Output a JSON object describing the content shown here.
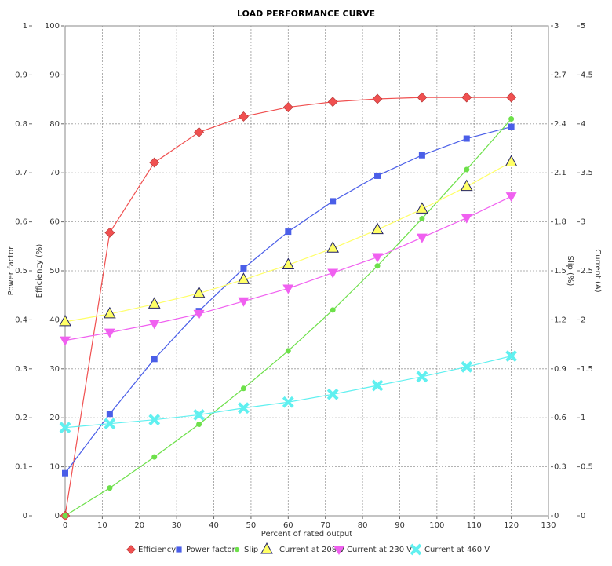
{
  "chart_data": {
    "type": "line",
    "title": "LOAD PERFORMANCE CURVE",
    "x_label": "Percent of rated output",
    "x": [
      0,
      12,
      24,
      36,
      48,
      60,
      72,
      84,
      96,
      108,
      120
    ],
    "xlim": [
      0,
      130
    ],
    "xticks": [
      0,
      10,
      20,
      30,
      40,
      50,
      60,
      70,
      80,
      90,
      100,
      110,
      120,
      130
    ],
    "grid": true,
    "y_axes": [
      {
        "label": "Power factor",
        "side": "left",
        "lim": [
          0,
          1
        ],
        "ticks": [
          0,
          0.1,
          0.2,
          0.3,
          0.4,
          0.5,
          0.6,
          0.7,
          0.8,
          0.9,
          1
        ]
      },
      {
        "label": "Efficiency (%)",
        "side": "left",
        "lim": [
          0,
          100
        ],
        "ticks": [
          0,
          10,
          20,
          30,
          40,
          50,
          60,
          70,
          80,
          90,
          100
        ]
      },
      {
        "label": "Slip (%)",
        "side": "right",
        "lim": [
          0,
          3
        ],
        "ticks": [
          0,
          0.3,
          0.6,
          0.9,
          1.2,
          1.5,
          1.8,
          2.1,
          2.4,
          2.7,
          3
        ]
      },
      {
        "label": "Current (A)",
        "side": "right",
        "lim": [
          0,
          5
        ],
        "ticks": [
          0,
          0.5,
          1,
          1.5,
          2,
          2.5,
          3,
          3.5,
          4,
          4.5,
          5
        ]
      }
    ],
    "series": [
      {
        "name": "Efficiency",
        "color": "#f05050",
        "marker": "diamond",
        "axis": 1,
        "values": [
          0,
          57.8,
          72.1,
          78.3,
          81.5,
          83.4,
          84.5,
          85.1,
          85.4,
          85.4,
          85.4
        ]
      },
      {
        "name": "Power factor",
        "color": "#4a5ee8",
        "marker": "square",
        "axis": 0,
        "values": [
          0.087,
          0.208,
          0.32,
          0.418,
          0.505,
          0.58,
          0.642,
          0.694,
          0.736,
          0.77,
          0.794
        ]
      },
      {
        "name": "Slip",
        "color": "#6de04a",
        "marker": "circle",
        "axis": 2,
        "values": [
          0,
          0.17,
          0.36,
          0.56,
          0.78,
          1.01,
          1.26,
          1.53,
          1.82,
          2.12,
          2.43
        ]
      },
      {
        "name": "Current at 208 V",
        "color": "#ffff66",
        "marker": "triangle-up",
        "axis": 3,
        "values": [
          1.98,
          2.06,
          2.16,
          2.27,
          2.41,
          2.56,
          2.73,
          2.92,
          3.13,
          3.36,
          3.61
        ]
      },
      {
        "name": "Current at 230 V",
        "color": "#f060f0",
        "marker": "triangle-down",
        "axis": 3,
        "values": [
          1.79,
          1.87,
          1.96,
          2.06,
          2.19,
          2.32,
          2.48,
          2.64,
          2.84,
          3.04,
          3.26
        ]
      },
      {
        "name": "Current at 460 V",
        "color": "#60f0f0",
        "marker": "x",
        "axis": 3,
        "values": [
          0.9,
          0.94,
          0.98,
          1.03,
          1.1,
          1.16,
          1.24,
          1.33,
          1.42,
          1.52,
          1.63
        ]
      }
    ]
  }
}
